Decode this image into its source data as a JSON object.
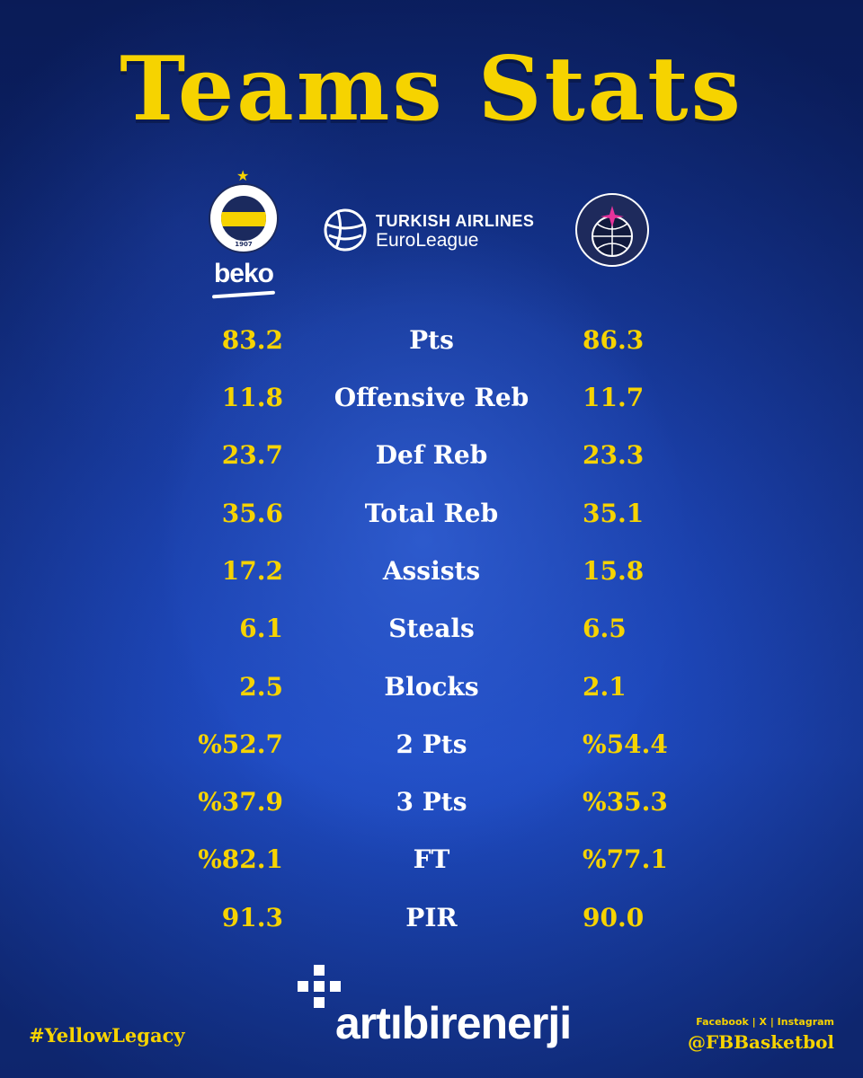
{
  "header": {
    "title": "Teams Stats"
  },
  "logos": {
    "home": {
      "name": "fenerbahce-beko-logo",
      "sponsor_text": "beko",
      "year": "1907"
    },
    "league": {
      "line1": "TURKISH AIRLINES",
      "line2": "EuroLeague"
    },
    "away": {
      "name": "paris-basketball-logo"
    }
  },
  "stats": {
    "rows": [
      {
        "left": "83.2",
        "label": "Pts",
        "right": "86.3"
      },
      {
        "left": "11.8",
        "label": "Offensive Reb",
        "right": "11.7"
      },
      {
        "left": "23.7",
        "label": "Def Reb",
        "right": "23.3"
      },
      {
        "left": "35.6",
        "label": "Total Reb",
        "right": "35.1"
      },
      {
        "left": "17.2",
        "label": "Assists",
        "right": "15.8"
      },
      {
        "left": "6.1",
        "label": "Steals",
        "right": "6.5"
      },
      {
        "left": "2.5",
        "label": "Blocks",
        "right": "2.1"
      },
      {
        "left": "%52.7",
        "label": "2 Pts",
        "right": "%54.4"
      },
      {
        "left": "%37.9",
        "label": "3 Pts",
        "right": "%35.3"
      },
      {
        "left": "%82.1",
        "label": "FT",
        "right": "%77.1"
      },
      {
        "left": "91.3",
        "label": "PIR",
        "right": "90.0"
      }
    ]
  },
  "footer": {
    "sponsor": "artıbirenerji",
    "hashtag": "#YellowLegacy",
    "social_platforms": "Facebook | X | Instagram",
    "handle": "@FBBasketbol"
  },
  "colors": {
    "accent": "#f6d300",
    "background": "#1a3fa8",
    "text": "#ffffff"
  }
}
